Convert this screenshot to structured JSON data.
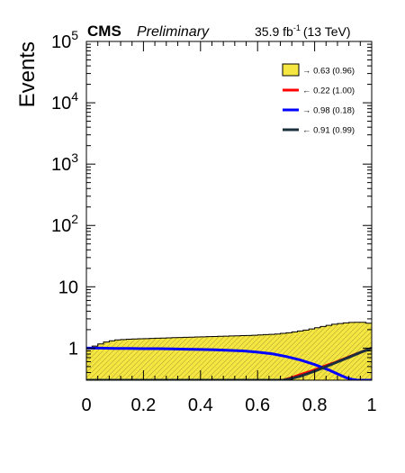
{
  "header": {
    "experiment": "CMS",
    "status": "Preliminary",
    "luminosity": "35.9 fb",
    "lumi_exponent": "-1",
    "energy": "(13 TeV)"
  },
  "chart_data": {
    "type": "area",
    "ylabel": "Events",
    "xlabel": "",
    "xlim": [
      0,
      1
    ],
    "ylim": [
      0.3,
      100000
    ],
    "y_scale": "log",
    "x_ticks": [
      "0",
      "0.2",
      "0.4",
      "0.6",
      "0.8",
      "1"
    ],
    "y_ticks": [
      {
        "value": 1,
        "label": "1"
      },
      {
        "value": 10,
        "label": "10"
      },
      {
        "value": 100,
        "base": "10",
        "exp": "2"
      },
      {
        "value": 1000,
        "base": "10",
        "exp": "3"
      },
      {
        "value": 10000,
        "base": "10",
        "exp": "4"
      },
      {
        "value": 100000,
        "base": "10",
        "exp": "5"
      }
    ],
    "legend_position": "top-right",
    "series": [
      {
        "name": "→ 0.63 (0.96)",
        "style": "filled-histogram",
        "color": "#f5e642",
        "edge": "#000000",
        "x": [
          0.02,
          0.04,
          0.06,
          0.08,
          0.1,
          0.12,
          0.14,
          0.16,
          0.18,
          0.2,
          0.22,
          0.24,
          0.26,
          0.28,
          0.3,
          0.32,
          0.34,
          0.36,
          0.38,
          0.4,
          0.42,
          0.44,
          0.46,
          0.48,
          0.5,
          0.52,
          0.54,
          0.56,
          0.58,
          0.6,
          0.62,
          0.64,
          0.66,
          0.68,
          0.7,
          0.72,
          0.74,
          0.76,
          0.78,
          0.8,
          0.82,
          0.84,
          0.86,
          0.88,
          0.9,
          0.92,
          0.94,
          0.96,
          0.98,
          1.0
        ],
        "y": [
          1.02,
          1.08,
          1.17,
          1.26,
          1.32,
          1.36,
          1.38,
          1.4,
          1.41,
          1.42,
          1.43,
          1.44,
          1.45,
          1.46,
          1.47,
          1.48,
          1.49,
          1.5,
          1.51,
          1.52,
          1.53,
          1.54,
          1.55,
          1.56,
          1.57,
          1.58,
          1.59,
          1.6,
          1.61,
          1.62,
          1.64,
          1.66,
          1.68,
          1.7,
          1.74,
          1.78,
          1.84,
          1.9,
          1.97,
          2.05,
          2.15,
          2.25,
          2.35,
          2.45,
          2.52,
          2.58,
          2.62,
          2.64,
          2.63,
          2.55
        ]
      },
      {
        "name": "← 0.22 (1.00)",
        "style": "line",
        "color": "#ff0000",
        "x": [
          0.69,
          0.72,
          0.75,
          0.78,
          0.81,
          0.84,
          0.87,
          0.9,
          0.93,
          0.96,
          1.0
        ],
        "y": [
          0.3,
          0.33,
          0.37,
          0.41,
          0.46,
          0.52,
          0.58,
          0.66,
          0.75,
          0.85,
          1.0
        ]
      },
      {
        "name": "→ 0.98 (0.18)",
        "style": "line",
        "color": "#0000ff",
        "x": [
          0.0,
          0.05,
          0.1,
          0.15,
          0.2,
          0.25,
          0.3,
          0.35,
          0.4,
          0.45,
          0.5,
          0.55,
          0.6,
          0.65,
          0.7,
          0.75,
          0.8,
          0.85,
          0.88,
          0.91,
          0.93,
          0.95,
          0.97,
          1.0
        ],
        "y": [
          1.0,
          1.0,
          0.99,
          0.99,
          0.98,
          0.98,
          0.97,
          0.96,
          0.95,
          0.94,
          0.92,
          0.9,
          0.86,
          0.81,
          0.73,
          0.64,
          0.54,
          0.44,
          0.38,
          0.33,
          0.31,
          0.3,
          0.3,
          0.3
        ]
      },
      {
        "name": "← 0.91 (0.99)",
        "style": "line",
        "color": "#1c2f3d",
        "x": [
          0.0,
          0.69,
          0.72,
          0.75,
          0.78,
          0.81,
          0.84,
          0.87,
          0.9,
          0.93,
          0.96,
          1.0
        ],
        "y": [
          0.3,
          0.3,
          0.32,
          0.35,
          0.39,
          0.44,
          0.5,
          0.57,
          0.65,
          0.74,
          0.85,
          1.0
        ]
      }
    ]
  }
}
